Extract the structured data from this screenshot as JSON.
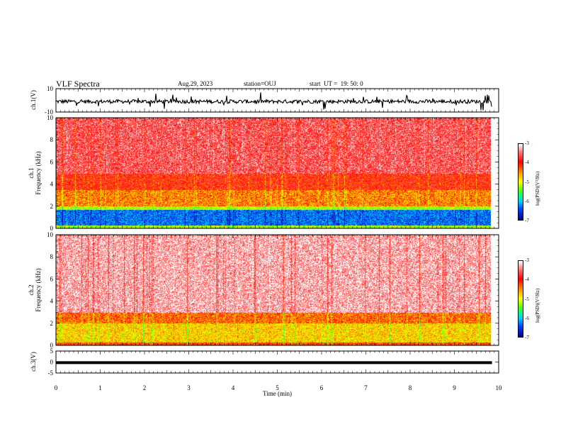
{
  "header": {
    "title": "VLF Spectra",
    "date": "Aug.29, 2023",
    "station": "station=OUJ",
    "start": "start  UT =  19: 50: 0"
  },
  "colorbar": {
    "label": "log(PSD)(V²/Hz)",
    "ticks": [
      "-3",
      "-4",
      "-5",
      "-6",
      "-7"
    ]
  },
  "chart_data": [
    {
      "type": "line",
      "panel": "ch1-waveform",
      "ylabel": "ch.1(V)",
      "ylim": [
        -10,
        10
      ],
      "yticks": [
        "10",
        "-10"
      ],
      "xlim": [
        0,
        10
      ],
      "description_values": {
        "baseline": -1,
        "noise_range": [
          -5,
          4
        ]
      }
    },
    {
      "type": "heatmap",
      "panel": "ch1-spectrogram",
      "ylabel": "ch.1 Frequency (kHz)",
      "ylim": [
        0,
        10
      ],
      "yticks": [
        "0",
        "2",
        "4",
        "6",
        "8",
        "10"
      ],
      "xlim": [
        0,
        9.85
      ],
      "zlim": [
        -7,
        -3
      ],
      "bands": [
        {
          "f": [
            0,
            0.3
          ],
          "logpsd": -5.0
        },
        {
          "f": [
            0.3,
            1.7
          ],
          "logpsd": -6.3
        },
        {
          "f": [
            1.7,
            2.0
          ],
          "logpsd": -5.0
        },
        {
          "f": [
            2.0,
            3.5
          ],
          "logpsd": -4.3
        },
        {
          "f": [
            3.5,
            5.0
          ],
          "logpsd": -3.9
        },
        {
          "f": [
            5.0,
            10.0
          ],
          "logpsd": -3.5
        }
      ]
    },
    {
      "type": "heatmap",
      "panel": "ch2-spectrogram",
      "ylabel": "ch.2 Frequency (kHz)",
      "ylim": [
        0,
        10
      ],
      "yticks": [
        "0",
        "2",
        "4",
        "6",
        "8",
        "10"
      ],
      "xlim": [
        0,
        9.85
      ],
      "zlim": [
        -7,
        -3
      ],
      "bands": [
        {
          "f": [
            0,
            0.3
          ],
          "logpsd": -4.0
        },
        {
          "f": [
            0.3,
            2.0
          ],
          "logpsd": -4.6
        },
        {
          "f": [
            2.0,
            3.0
          ],
          "logpsd": -4.2
        },
        {
          "f": [
            3.0,
            10.0
          ],
          "logpsd": -3.2
        }
      ]
    },
    {
      "type": "line",
      "panel": "ch3-waveform",
      "ylabel": "ch.3(V)",
      "ylim": [
        -5,
        5
      ],
      "yticks": [
        "5",
        "0",
        "-5"
      ],
      "xlim": [
        0,
        9.85
      ],
      "values": {
        "constant": -0.3
      }
    }
  ],
  "xaxis": {
    "label": "Time  (min)",
    "ticks": [
      "0",
      "1",
      "2",
      "3",
      "4",
      "5",
      "6",
      "7",
      "8",
      "9",
      "10"
    ]
  }
}
